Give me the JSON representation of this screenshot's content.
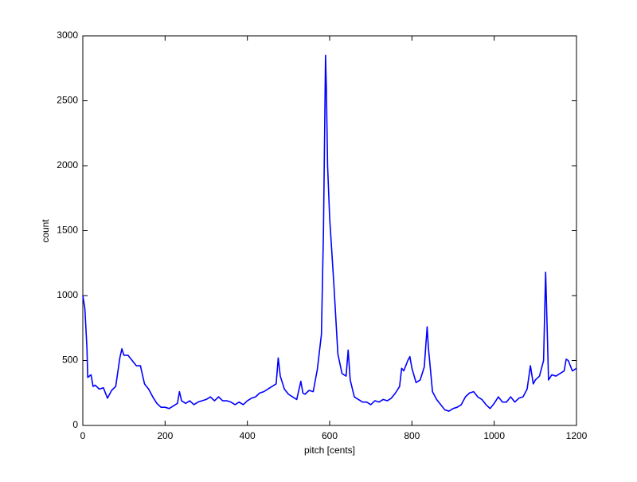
{
  "chart_data": {
    "type": "line",
    "xlabel": "pitch [cents]",
    "ylabel": "count",
    "x": [
      0,
      5,
      10,
      12,
      20,
      25,
      30,
      40,
      50,
      60,
      70,
      80,
      90,
      95,
      100,
      110,
      120,
      130,
      140,
      150,
      160,
      170,
      180,
      190,
      200,
      210,
      220,
      230,
      235,
      240,
      250,
      260,
      270,
      280,
      290,
      300,
      310,
      320,
      330,
      340,
      350,
      360,
      370,
      380,
      390,
      400,
      410,
      420,
      430,
      440,
      450,
      460,
      470,
      475,
      480,
      490,
      500,
      510,
      520,
      530,
      535,
      540,
      550,
      560,
      570,
      580,
      585,
      590,
      592,
      595,
      600,
      610,
      620,
      630,
      640,
      645,
      650,
      660,
      670,
      680,
      690,
      700,
      710,
      720,
      730,
      740,
      750,
      760,
      770,
      775,
      780,
      790,
      795,
      800,
      810,
      820,
      830,
      837,
      840,
      850,
      860,
      870,
      880,
      890,
      900,
      910,
      920,
      930,
      940,
      950,
      960,
      970,
      980,
      990,
      1000,
      1010,
      1020,
      1030,
      1040,
      1050,
      1060,
      1070,
      1080,
      1088,
      1095,
      1100,
      1110,
      1120,
      1125,
      1130,
      1132,
      1140,
      1150,
      1160,
      1170,
      1175,
      1180,
      1190,
      1200
    ],
    "series": [
      {
        "name": "count",
        "color": "#0000ff",
        "values": [
          1000,
          900,
          600,
          370,
          390,
          300,
          310,
          280,
          290,
          210,
          270,
          300,
          520,
          590,
          540,
          540,
          500,
          460,
          460,
          320,
          280,
          220,
          170,
          140,
          140,
          130,
          150,
          170,
          260,
          190,
          170,
          190,
          160,
          180,
          190,
          200,
          220,
          190,
          220,
          190,
          190,
          180,
          160,
          180,
          160,
          190,
          210,
          220,
          250,
          260,
          280,
          300,
          320,
          520,
          380,
          280,
          240,
          220,
          200,
          340,
          250,
          240,
          270,
          260,
          430,
          700,
          1500,
          2850,
          2600,
          2000,
          1600,
          1100,
          550,
          400,
          380,
          580,
          350,
          220,
          200,
          180,
          180,
          160,
          190,
          180,
          200,
          190,
          210,
          250,
          300,
          440,
          420,
          500,
          530,
          440,
          330,
          350,
          450,
          760,
          600,
          260,
          200,
          160,
          120,
          110,
          130,
          140,
          160,
          220,
          250,
          260,
          220,
          200,
          160,
          130,
          170,
          220,
          180,
          180,
          220,
          180,
          210,
          220,
          280,
          460,
          320,
          350,
          380,
          500,
          1180,
          600,
          350,
          390,
          380,
          400,
          420,
          510,
          500,
          420,
          440
        ]
      }
    ],
    "xlim": [
      0,
      1200
    ],
    "xticks": [
      0,
      200,
      400,
      600,
      800,
      1000,
      1200
    ],
    "ylim": [
      0,
      3000
    ],
    "yticks": [
      0,
      500,
      1000,
      1500,
      2000,
      2500,
      3000
    ]
  }
}
